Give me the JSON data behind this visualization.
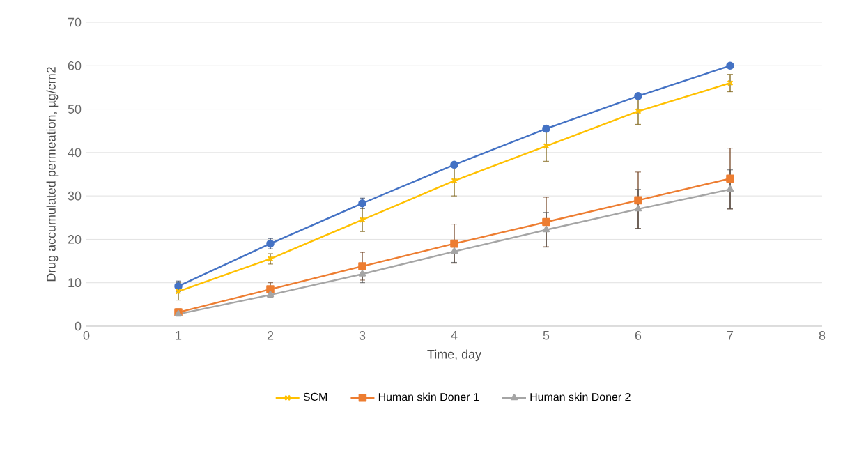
{
  "chart_data": {
    "type": "line",
    "xlabel": "Time, day",
    "ylabel": "Drug accumulated permeation, µg/cm2",
    "x": [
      1,
      2,
      3,
      4,
      5,
      6,
      7
    ],
    "series": [
      {
        "color": "#4472c4",
        "marker": "circle",
        "values": [
          9.2,
          19,
          28.3,
          37.2,
          45.5,
          53,
          60
        ],
        "errors": [
          1.2,
          1.2,
          1.2,
          null,
          null,
          null,
          null
        ]
      },
      {
        "name": "SCM",
        "color": "#ffc000",
        "marker": "cross",
        "values": [
          8,
          15.5,
          24.5,
          33.5,
          41.5,
          49.5,
          56
        ],
        "errors": [
          2,
          1.2,
          2.7,
          3.5,
          3.5,
          3,
          2
        ]
      },
      {
        "name": "Human skin Doner 1",
        "color": "#ed7d31",
        "marker": "square",
        "values": [
          3.2,
          8.5,
          13.8,
          19,
          24,
          29,
          34
        ],
        "errors": [
          0.8,
          1.5,
          3.2,
          4.5,
          5.7,
          6.5,
          7
        ]
      },
      {
        "name": "Human skin Doner 2",
        "color": "#a5a5a5",
        "marker": "triangle",
        "values": [
          2.8,
          7.2,
          12,
          17.2,
          22.2,
          27,
          31.5
        ],
        "errors": [
          0.5,
          0.5,
          2,
          2.5,
          4,
          4.5,
          4.5
        ]
      }
    ],
    "xlim": [
      0,
      8
    ],
    "xticks": [
      0,
      1,
      2,
      3,
      4,
      5,
      6,
      7,
      8
    ],
    "ylim": [
      0,
      70
    ],
    "yticks": [
      0,
      10,
      20,
      30,
      40,
      50,
      60,
      70
    ],
    "grid": "y",
    "legend": "bottom",
    "line_style": "solid"
  }
}
